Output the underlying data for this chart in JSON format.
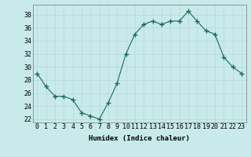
{
  "x": [
    0,
    1,
    2,
    3,
    4,
    5,
    6,
    7,
    8,
    9,
    10,
    11,
    12,
    13,
    14,
    15,
    16,
    17,
    18,
    19,
    20,
    21,
    22,
    23
  ],
  "y": [
    29,
    27,
    25.5,
    25.5,
    25,
    23,
    22.5,
    22,
    24.5,
    27.5,
    32,
    35,
    36.5,
    37,
    36.5,
    37,
    37,
    38.5,
    37,
    35.5,
    35,
    31.5,
    30,
    29
  ],
  "line_color": "#1a6b5a",
  "marker": "+",
  "marker_size": 4,
  "background_color": "#c8eaea",
  "grid_color": "#b8d8d8",
  "xlabel": "Humidex (Indice chaleur)",
  "xlim": [
    -0.5,
    23.5
  ],
  "ylim": [
    21.5,
    39.5
  ],
  "xtick_labels": [
    "0",
    "1",
    "2",
    "3",
    "4",
    "5",
    "6",
    "7",
    "8",
    "9",
    "10",
    "11",
    "12",
    "13",
    "14",
    "15",
    "16",
    "17",
    "18",
    "19",
    "20",
    "21",
    "22",
    "23"
  ],
  "ytick_values": [
    22,
    24,
    26,
    28,
    30,
    32,
    34,
    36,
    38
  ],
  "xlabel_fontsize": 6.5,
  "tick_fontsize": 6.0
}
